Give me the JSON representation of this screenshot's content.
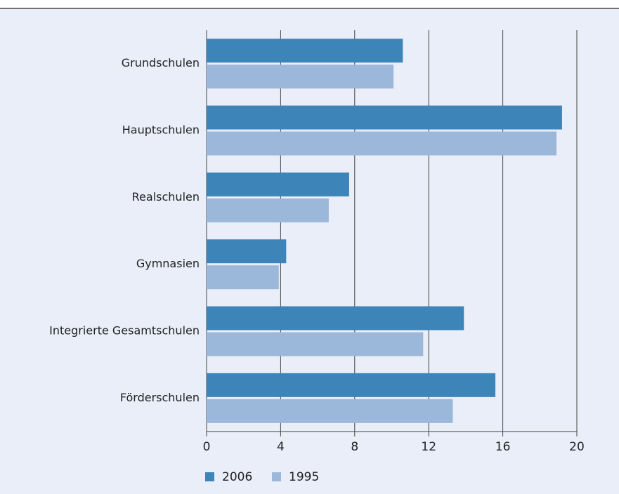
{
  "chart_data": {
    "type": "bar",
    "orientation": "horizontal",
    "categories": [
      "Grundschulen",
      "Hauptschulen",
      "Realschulen",
      "Gymnasien",
      "Integrierte Gesamtschulen",
      "Förderschulen"
    ],
    "series": [
      {
        "name": "2006",
        "color": "#3d84b8",
        "values": [
          10.6,
          19.2,
          7.7,
          4.3,
          13.9,
          15.6
        ]
      },
      {
        "name": "1995",
        "color": "#9bb8da",
        "values": [
          10.1,
          18.9,
          6.6,
          3.9,
          11.7,
          13.3
        ]
      }
    ],
    "xlim": [
      0,
      20
    ],
    "xticks": [
      0,
      4,
      8,
      12,
      16,
      20
    ],
    "grid": true,
    "legend": "bottom-left"
  }
}
